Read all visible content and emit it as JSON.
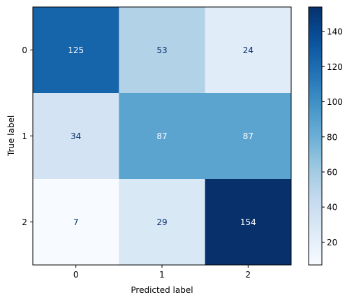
{
  "chart_data": {
    "type": "heatmap",
    "title": "",
    "xlabel": "Predicted label",
    "ylabel": "True label",
    "x_categories": [
      "0",
      "1",
      "2"
    ],
    "y_categories": [
      "0",
      "1",
      "2"
    ],
    "values": [
      [
        125,
        53,
        24
      ],
      [
        34,
        87,
        87
      ],
      [
        7,
        29,
        154
      ]
    ],
    "colormap": "Blues",
    "color_range": [
      7,
      154
    ],
    "colorbar_ticks": [
      20,
      40,
      60,
      80,
      100,
      120,
      140
    ],
    "grid": false
  }
}
